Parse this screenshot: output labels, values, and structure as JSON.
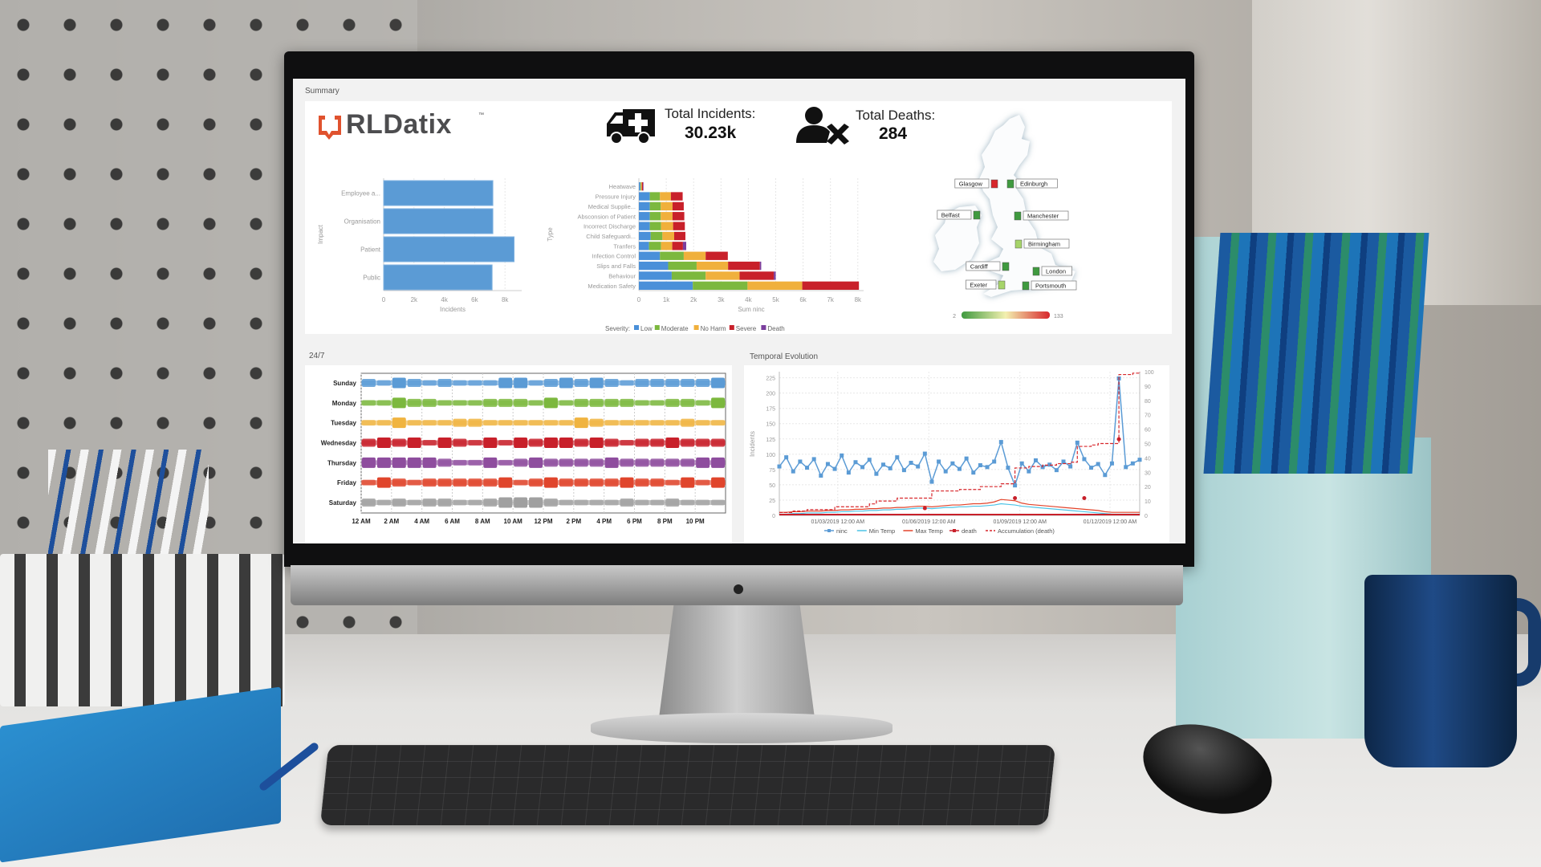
{
  "summary": {
    "title": "Summary"
  },
  "logo": {
    "text": "RLDatix",
    "tm": "™",
    "color": "#e0522e"
  },
  "kpis": [
    {
      "icon": "ambulance-icon",
      "label": "Total Incidents:",
      "value": "30.23k"
    },
    {
      "icon": "person-x-icon",
      "label": "Total Deaths:",
      "value": "284"
    }
  ],
  "sections": {
    "week": "24/7",
    "temporal": "Temporal Evolution"
  },
  "map": {
    "cities": [
      {
        "name": "Glasgow",
        "color": "#d7262b"
      },
      {
        "name": "Edinburgh",
        "color": "#3f9a3f"
      },
      {
        "name": "Belfast",
        "color": "#3f9a3f"
      },
      {
        "name": "Manchester",
        "color": "#3f9a3f"
      },
      {
        "name": "Birmingham",
        "color": "#a6d46a"
      },
      {
        "name": "Cardiff",
        "color": "#3f9a3f"
      },
      {
        "name": "London",
        "color": "#3f9a3f"
      },
      {
        "name": "Exeter",
        "color": "#a6d46a"
      },
      {
        "name": "Portsmouth",
        "color": "#3f9a3f"
      }
    ],
    "legend_min": "2",
    "legend_max": "133",
    "gradient": [
      "#3f9a3f",
      "#f3f0b0",
      "#d7262b"
    ]
  },
  "chart_data": [
    {
      "type": "bar",
      "orientation": "horizontal",
      "categories": [
        "Employee a...",
        "Organisation",
        "Patient",
        "Public"
      ],
      "values": [
        7200,
        7200,
        8600,
        7150
      ],
      "xlabel": "Incidents",
      "ylabel": "Impact",
      "xticks": [
        0,
        2000,
        4000,
        6000,
        8000
      ],
      "xtick_labels": [
        "0",
        "2k",
        "4k",
        "6k",
        "8k"
      ],
      "xlim": [
        0,
        9100
      ],
      "color": "#5b9bd5",
      "grid": true
    },
    {
      "type": "bar",
      "orientation": "horizontal",
      "stacked": true,
      "categories": [
        "Heatwave",
        "Pressure Injury",
        "Medical Supplie...",
        "Absconsion of Patient",
        "Incorrect Discharge",
        "Child Safeguardi...",
        "Tranfers",
        "Infection Control",
        "Slips and Falls",
        "Behaviour",
        "Medication Safety"
      ],
      "series": [
        {
          "name": "Low",
          "color": "#4a90d9",
          "values": [
            50,
            400,
            400,
            400,
            400,
            430,
            370,
            770,
            1070,
            1200,
            1970
          ]
        },
        {
          "name": "Moderate",
          "color": "#7cb83e",
          "values": [
            30,
            370,
            400,
            400,
            410,
            430,
            440,
            870,
            1040,
            1240,
            2000
          ]
        },
        {
          "name": "No Harm",
          "color": "#f0b03c",
          "values": [
            30,
            400,
            430,
            430,
            440,
            430,
            410,
            800,
            1150,
            1240,
            2000
          ]
        },
        {
          "name": "Severe",
          "color": "#c8202a",
          "values": [
            40,
            430,
            410,
            430,
            430,
            410,
            390,
            810,
            1160,
            1250,
            2070
          ]
        },
        {
          "name": "Death",
          "color": "#7b3f9e",
          "values": [
            20,
            0,
            0,
            0,
            0,
            0,
            120,
            0,
            50,
            70,
            0
          ]
        }
      ],
      "xlabel": "Sum ninc",
      "ylabel": "Type",
      "legend_title": "Severity:",
      "legend_position": "bottom",
      "xticks": [
        0,
        1000,
        2000,
        3000,
        4000,
        5000,
        6000,
        7000,
        8000
      ],
      "xtick_labels": [
        "0",
        "1k",
        "2k",
        "3k",
        "4k",
        "5k",
        "6k",
        "7k",
        "8k"
      ],
      "xlim": [
        0,
        8200
      ],
      "grid": true
    },
    {
      "type": "heatmap",
      "rows": [
        {
          "name": "Sunday",
          "color": "#5b9bd5",
          "levels": [
            2,
            1,
            3,
            2,
            1,
            2,
            1,
            1,
            1,
            3,
            3,
            1,
            2,
            3,
            2,
            3,
            2,
            1,
            2,
            2,
            2,
            2,
            2,
            3
          ]
        },
        {
          "name": "Monday",
          "color": "#7cb83e",
          "levels": [
            1,
            1,
            3,
            2,
            2,
            1,
            1,
            1,
            2,
            2,
            2,
            1,
            3,
            1,
            2,
            2,
            2,
            2,
            1,
            1,
            2,
            2,
            1,
            3
          ]
        },
        {
          "name": "Tuesday",
          "color": "#f0b440",
          "levels": [
            1,
            1,
            3,
            1,
            1,
            1,
            2,
            2,
            1,
            1,
            1,
            1,
            1,
            1,
            3,
            2,
            1,
            1,
            1,
            1,
            1,
            2,
            1,
            1
          ]
        },
        {
          "name": "Wednesday",
          "color": "#c8202a",
          "levels": [
            2,
            3,
            2,
            3,
            1,
            3,
            2,
            1,
            3,
            1,
            3,
            2,
            3,
            3,
            2,
            3,
            2,
            1,
            2,
            2,
            3,
            2,
            2,
            2
          ]
        },
        {
          "name": "Thursday",
          "color": "#8e4d9e",
          "levels": [
            3,
            3,
            3,
            3,
            3,
            2,
            1,
            1,
            3,
            1,
            2,
            3,
            2,
            2,
            2,
            2,
            3,
            2,
            2,
            2,
            2,
            2,
            3,
            3
          ]
        },
        {
          "name": "Friday",
          "color": "#e0452c",
          "levels": [
            1,
            3,
            2,
            1,
            2,
            2,
            2,
            2,
            2,
            3,
            1,
            2,
            3,
            2,
            2,
            2,
            2,
            3,
            2,
            2,
            1,
            3,
            1,
            3
          ]
        },
        {
          "name": "Saturday",
          "color": "#a0a0a0",
          "levels": [
            2,
            1,
            2,
            1,
            2,
            2,
            1,
            1,
            2,
            3,
            3,
            3,
            2,
            1,
            1,
            1,
            1,
            2,
            1,
            1,
            2,
            1,
            1,
            1
          ]
        }
      ],
      "xtick_labels": [
        "12 AM",
        "2 AM",
        "4 AM",
        "6 AM",
        "8 AM",
        "10 AM",
        "12 PM",
        "2 PM",
        "4 PM",
        "6 PM",
        "8 PM",
        "10 PM"
      ]
    },
    {
      "type": "line",
      "ylabel": "Incidents",
      "xlim": [
        "2019-01-01",
        "2019-12-31"
      ],
      "ylim": [
        0,
        235
      ],
      "y2lim": [
        0,
        100
      ],
      "yticks": [
        0,
        25,
        50,
        75,
        100,
        125,
        150,
        175,
        200,
        225
      ],
      "y2ticks": [
        0,
        10,
        20,
        30,
        40,
        50,
        60,
        70,
        80,
        90,
        100
      ],
      "xticks": [
        "2019-03-01",
        "2019-06-01",
        "2019-09-01",
        "2019-12-01"
      ],
      "xtick_labels": [
        "01/03/2019 12:00 AM",
        "01/06/2019 12:00 AM",
        "01/09/2019 12:00 AM",
        "01/12/2019 12:00 AM"
      ],
      "legend_position": "bottom",
      "x": [
        "2019-01-01",
        "2019-01-08",
        "2019-01-15",
        "2019-01-22",
        "2019-01-29",
        "2019-02-05",
        "2019-02-12",
        "2019-02-19",
        "2019-02-26",
        "2019-03-05",
        "2019-03-12",
        "2019-03-19",
        "2019-03-26",
        "2019-04-02",
        "2019-04-09",
        "2019-04-16",
        "2019-04-23",
        "2019-04-30",
        "2019-05-07",
        "2019-05-14",
        "2019-05-21",
        "2019-05-28",
        "2019-06-04",
        "2019-06-11",
        "2019-06-18",
        "2019-06-25",
        "2019-07-02",
        "2019-07-09",
        "2019-07-16",
        "2019-07-23",
        "2019-07-30",
        "2019-08-06",
        "2019-08-13",
        "2019-08-20",
        "2019-08-27",
        "2019-09-03",
        "2019-09-10",
        "2019-09-17",
        "2019-09-24",
        "2019-10-01",
        "2019-10-08",
        "2019-10-15",
        "2019-10-22",
        "2019-10-29",
        "2019-11-05",
        "2019-11-12",
        "2019-11-19",
        "2019-11-26",
        "2019-12-03",
        "2019-12-10",
        "2019-12-17",
        "2019-12-24",
        "2019-12-31"
      ],
      "series": [
        {
          "name": "ninc",
          "color": "#5b9bd5",
          "axis": "left",
          "marker": "square",
          "values": [
            80,
            95,
            72,
            88,
            78,
            92,
            65,
            84,
            76,
            98,
            70,
            87,
            79,
            91,
            68,
            83,
            77,
            95,
            74,
            86,
            80,
            101,
            55,
            88,
            72,
            85,
            76,
            93,
            70,
            82,
            79,
            88,
            120,
            78,
            49,
            85,
            72,
            90,
            79,
            83,
            74,
            88,
            80,
            119,
            92,
            78,
            84,
            66,
            85,
            224,
            79,
            85,
            91
          ]
        },
        {
          "name": "Min Temp",
          "color": "#4cc3e6",
          "axis": "left",
          "values": [
            2,
            2,
            3,
            3,
            4,
            4,
            4,
            5,
            5,
            6,
            6,
            7,
            7,
            8,
            8,
            9,
            9,
            10,
            10,
            11,
            12,
            12,
            11,
            12,
            13,
            13,
            14,
            14,
            15,
            15,
            16,
            17,
            19,
            18,
            17,
            15,
            14,
            13,
            12,
            11,
            10,
            9,
            8,
            7,
            6,
            5,
            4,
            3,
            2,
            2,
            2,
            2,
            2
          ]
        },
        {
          "name": "Max Temp",
          "color": "#e2432a",
          "axis": "left",
          "values": [
            5,
            5,
            6,
            6,
            7,
            7,
            7,
            8,
            8,
            9,
            9,
            10,
            10,
            11,
            11,
            12,
            12,
            13,
            13,
            14,
            15,
            15,
            14,
            15,
            16,
            17,
            17,
            18,
            19,
            19,
            20,
            22,
            26,
            25,
            24,
            20,
            18,
            17,
            16,
            15,
            14,
            13,
            12,
            11,
            10,
            9,
            8,
            6,
            5,
            5,
            5,
            5,
            5
          ]
        },
        {
          "name": "death",
          "color": "#c8202a",
          "axis": "right",
          "marker": "dot",
          "points": [
            {
              "x": "2019-05-28",
              "y": 5
            },
            {
              "x": "2019-08-27",
              "y": 12
            },
            {
              "x": "2019-11-05",
              "y": 12
            },
            {
              "x": "2019-12-10",
              "y": 53
            }
          ]
        },
        {
          "name": "Accumulation (death)",
          "color": "#d7262b",
          "axis": "right",
          "dashed": true,
          "values": [
            2,
            2,
            3,
            3,
            4,
            4,
            4,
            4,
            6,
            6,
            6,
            6,
            6,
            8,
            10,
            10,
            10,
            12,
            12,
            12,
            12,
            12,
            17,
            17,
            17,
            17,
            18,
            18,
            18,
            20,
            20,
            20,
            22,
            22,
            33,
            33,
            34,
            34,
            35,
            35,
            36,
            36,
            37,
            48,
            48,
            49,
            50,
            50,
            50,
            98,
            98,
            99,
            100
          ]
        }
      ]
    }
  ]
}
